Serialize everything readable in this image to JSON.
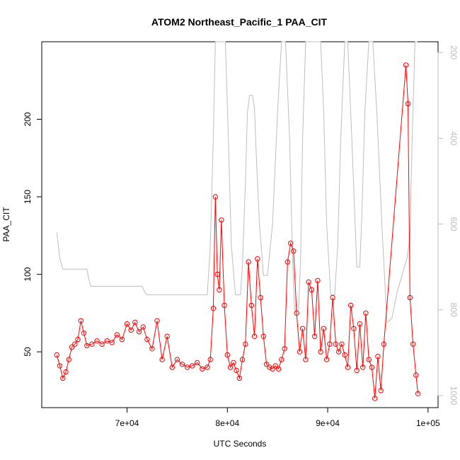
{
  "chart_data": {
    "type": "line",
    "title": "ATOM2 Northeast_Pacific_1 PAA_CIT",
    "xlabel": "UTC Seconds",
    "ylabel": "PAA_CIT",
    "xlim": [
      61500,
      101000
    ],
    "ylim": [
      14,
      250
    ],
    "x_ticks": [
      70000,
      80000,
      90000,
      100000
    ],
    "x_tick_labels": [
      "7e+04",
      "8e+04",
      "9e+04",
      "1e+05"
    ],
    "y_ticks": [
      50,
      100,
      150,
      200
    ],
    "y_tick_labels": [
      "50",
      "100",
      "150",
      "200"
    ],
    "y2_lim": [
      1028,
      175
    ],
    "y2_reversed": true,
    "y2_ticks": [
      200,
      400,
      600,
      800,
      1000
    ],
    "y2_tick_labels": [
      "200",
      "400",
      "600",
      "800",
      "1000"
    ],
    "grid": false,
    "legend": "none",
    "colors": {
      "primary": "#ff0000",
      "secondary": "#bebebe"
    },
    "series": [
      {
        "style": "points-and-line",
        "color": "#ff0000",
        "x": [
          63000,
          63300,
          63600,
          63900,
          64200,
          64500,
          64800,
          65100,
          65400,
          65700,
          66000,
          66500,
          67000,
          67500,
          68000,
          68500,
          69000,
          69500,
          70000,
          70400,
          70800,
          71200,
          71600,
          72000,
          72500,
          73000,
          73500,
          74000,
          74500,
          75000,
          75500,
          76000,
          76500,
          77000,
          77500,
          78000,
          78300,
          78600,
          78800,
          79000,
          79200,
          79400,
          79700,
          80000,
          80300,
          80600,
          80900,
          81200,
          81500,
          81800,
          82100,
          82400,
          82700,
          83000,
          83300,
          83600,
          83900,
          84200,
          84500,
          84800,
          85100,
          85400,
          85700,
          86000,
          86300,
          86600,
          86900,
          87200,
          87500,
          87800,
          88100,
          88400,
          88700,
          89000,
          89300,
          89600,
          89900,
          90200,
          90500,
          90800,
          91100,
          91400,
          91700,
          92000,
          92300,
          92600,
          92900,
          93200,
          93500,
          93800,
          94100,
          94400,
          94700,
          95000,
          95300,
          95600,
          97800,
          98000,
          98200,
          98500,
          98800,
          99000
        ],
        "y": [
          48,
          41,
          33,
          37,
          45,
          53,
          55,
          58,
          70,
          62,
          54,
          55,
          57,
          55,
          57,
          56,
          61,
          58,
          68,
          64,
          69,
          63,
          66,
          58,
          52,
          70,
          45,
          60,
          40,
          45,
          42,
          40,
          41,
          43,
          39,
          40,
          45,
          78,
          150,
          100,
          90,
          135,
          80,
          48,
          40,
          43,
          38,
          33,
          45,
          55,
          108,
          80,
          60,
          110,
          85,
          60,
          42,
          40,
          39,
          41,
          39,
          45,
          52,
          108,
          120,
          115,
          75,
          50,
          65,
          45,
          95,
          90,
          60,
          96,
          50,
          65,
          45,
          55,
          85,
          55,
          50,
          55,
          48,
          40,
          80,
          65,
          38,
          68,
          40,
          75,
          45,
          40,
          20,
          47,
          25,
          55,
          235,
          210,
          85,
          55,
          35,
          23
        ]
      },
      {
        "style": "line",
        "color": "#bebebe",
        "axis": "right",
        "x": [
          63000,
          63300,
          63600,
          64000,
          64500,
          65000,
          65500,
          66000,
          66200,
          66400,
          67000,
          68000,
          69000,
          70000,
          71000,
          71500,
          71800,
          72000,
          73000,
          74000,
          75000,
          76000,
          77000,
          78000,
          78300,
          78600,
          78800,
          79200,
          79500,
          79800,
          80100,
          80400,
          80800,
          81000,
          81300,
          81500,
          81800,
          82000,
          82200,
          82500,
          82700,
          82900,
          83200,
          83600,
          84000,
          84500,
          85000,
          85400,
          85800,
          86200,
          86500,
          86700,
          87100,
          87300,
          87500,
          87800,
          88200,
          88600,
          89000,
          89300,
          89600,
          89900,
          90300,
          90700,
          91000,
          91300,
          91700,
          92000,
          92400,
          92900,
          93200,
          93400,
          93700,
          94100,
          94500,
          94900,
          95400,
          95900,
          96400,
          96900,
          97400,
          97900,
          98200,
          98400,
          98700,
          98950
        ],
        "y": [
          620,
          680,
          705,
          705,
          705,
          705,
          705,
          705,
          730,
          745,
          745,
          745,
          745,
          745,
          745,
          745,
          760,
          765,
          765,
          765,
          765,
          765,
          765,
          765,
          650,
          400,
          175,
          175,
          175,
          175,
          400,
          650,
          765,
          765,
          765,
          700,
          500,
          340,
          300,
          300,
          330,
          450,
          600,
          720,
          720,
          600,
          340,
          175,
          175,
          400,
          680,
          800,
          800,
          680,
          400,
          175,
          175,
          175,
          175,
          175,
          340,
          600,
          765,
          765,
          650,
          400,
          175,
          175,
          400,
          700,
          700,
          580,
          340,
          175,
          175,
          340,
          600,
          830,
          820,
          760,
          720,
          680,
          630,
          420,
          175,
          175
        ]
      }
    ]
  }
}
